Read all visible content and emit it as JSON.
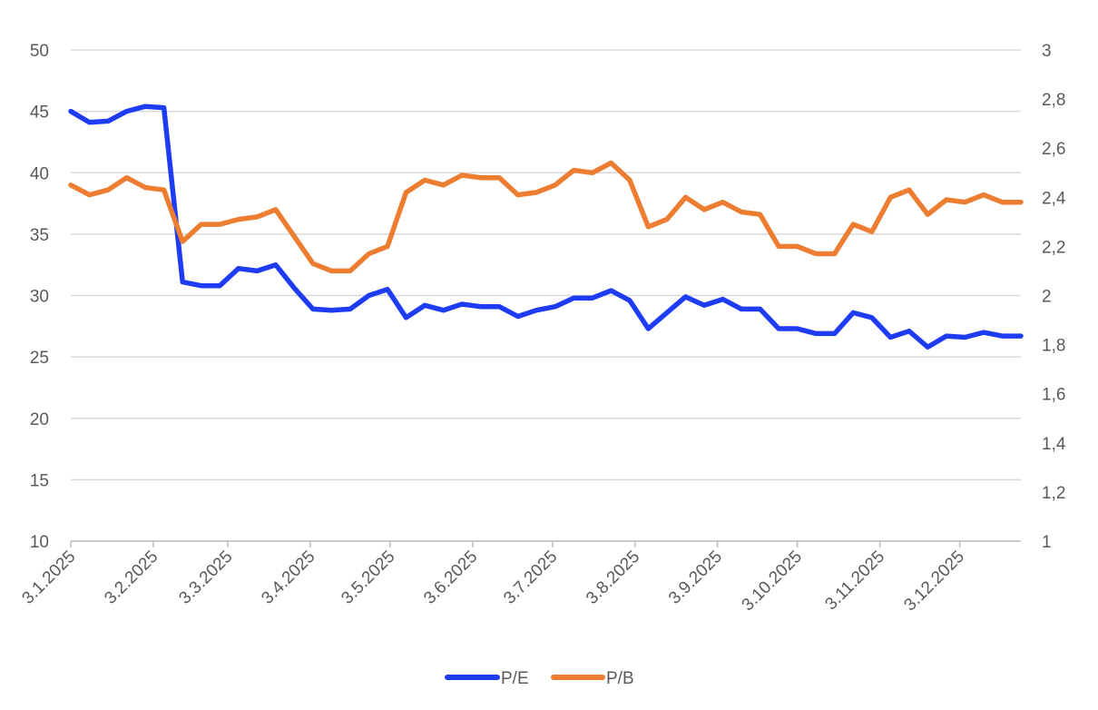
{
  "chart_data": {
    "type": "line",
    "x_tick_labels": [
      "3.1.2025",
      "3.2.2025",
      "3.3.2025",
      "3.4.2025",
      "3.5.2025",
      "3.6.2025",
      "3.7.2025",
      "3.8.2025",
      "3.9.2025",
      "3.10.2025",
      "3.11.2025",
      "3.12.2025"
    ],
    "x": [
      "2025-01-03",
      "2025-01-10",
      "2025-01-17",
      "2025-01-24",
      "2025-01-31",
      "2025-02-07",
      "2025-02-14",
      "2025-02-21",
      "2025-02-28",
      "2025-03-07",
      "2025-03-14",
      "2025-03-21",
      "2025-03-28",
      "2025-04-04",
      "2025-04-11",
      "2025-04-18",
      "2025-04-25",
      "2025-05-02",
      "2025-05-09",
      "2025-05-16",
      "2025-05-23",
      "2025-05-30",
      "2025-06-06",
      "2025-06-13",
      "2025-06-20",
      "2025-06-27",
      "2025-07-04",
      "2025-07-11",
      "2025-07-18",
      "2025-07-25",
      "2025-08-01",
      "2025-08-08",
      "2025-08-15",
      "2025-08-22",
      "2025-08-29",
      "2025-09-05",
      "2025-09-12",
      "2025-09-19",
      "2025-09-26",
      "2025-10-03",
      "2025-10-10",
      "2025-10-17",
      "2025-10-24",
      "2025-10-31",
      "2025-11-07",
      "2025-11-14",
      "2025-11-21",
      "2025-11-28",
      "2025-12-05",
      "2025-12-12",
      "2025-12-19",
      "2025-12-26"
    ],
    "series": [
      {
        "name": "P/E",
        "axis": "left",
        "color": "#1f3cf5",
        "values": [
          45.0,
          44.1,
          44.2,
          45.0,
          45.4,
          45.3,
          31.1,
          30.8,
          30.8,
          32.2,
          32.0,
          32.5,
          30.6,
          28.9,
          28.8,
          28.9,
          30.0,
          30.5,
          28.2,
          29.2,
          28.8,
          29.3,
          29.1,
          29.1,
          28.3,
          28.8,
          29.1,
          29.8,
          29.8,
          30.4,
          29.6,
          27.3,
          28.6,
          29.9,
          29.2,
          29.7,
          28.9,
          28.9,
          27.3,
          27.3,
          26.9,
          26.9,
          28.6,
          28.2,
          26.6,
          27.1,
          25.8,
          26.7,
          26.6,
          27.0,
          26.7,
          26.7
        ]
      },
      {
        "name": "P/B",
        "axis": "right",
        "color": "#ed7d31",
        "values": [
          2.45,
          2.41,
          2.43,
          2.48,
          2.44,
          2.43,
          2.22,
          2.29,
          2.29,
          2.31,
          2.32,
          2.35,
          2.24,
          2.13,
          2.1,
          2.1,
          2.17,
          2.2,
          2.42,
          2.47,
          2.45,
          2.49,
          2.48,
          2.48,
          2.41,
          2.42,
          2.45,
          2.51,
          2.5,
          2.54,
          2.47,
          2.28,
          2.31,
          2.4,
          2.35,
          2.38,
          2.34,
          2.33,
          2.2,
          2.2,
          2.17,
          2.17,
          2.29,
          2.26,
          2.4,
          2.43,
          2.33,
          2.39,
          2.38,
          2.41,
          2.38,
          2.38
        ]
      }
    ],
    "y_left": {
      "ylim": [
        10,
        50
      ],
      "ticks": [
        "10",
        "15",
        "20",
        "25",
        "30",
        "35",
        "40",
        "45",
        "50"
      ]
    },
    "y_right": {
      "ylim": [
        1,
        3
      ],
      "ticks": [
        "1",
        "1,2",
        "1,4",
        "1,6",
        "1,8",
        "2",
        "2,2",
        "2,4",
        "2,6",
        "2,8",
        "3"
      ]
    },
    "grid": true,
    "legend_position": "bottom",
    "title": "",
    "xlabel": "",
    "ylabel": ""
  }
}
